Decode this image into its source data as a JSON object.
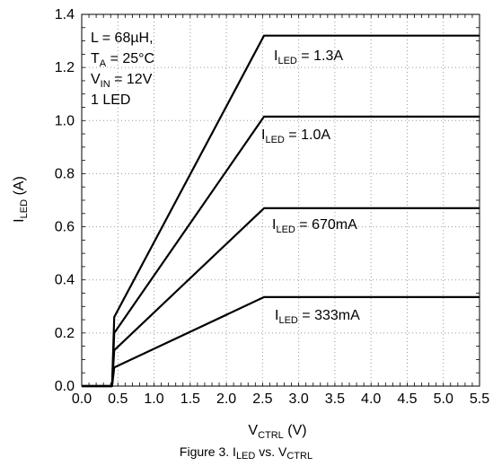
{
  "chart_data": {
    "type": "line",
    "title": "",
    "xlabel": {
      "main": "V",
      "sub": "CTRL",
      "unit": " (V)"
    },
    "ylabel": {
      "main": "I",
      "sub": "LED",
      "unit": " (A)"
    },
    "xlim": [
      0,
      5.5
    ],
    "ylim": [
      0,
      1.4
    ],
    "x_ticks": [
      "0.0",
      "0.5",
      "1.0",
      "1.5",
      "2.0",
      "2.5",
      "3.0",
      "3.5",
      "4.0",
      "4.5",
      "5.0",
      "5.5"
    ],
    "y_ticks": [
      "0.0",
      "0.2",
      "0.4",
      "0.6",
      "0.8",
      "1.0",
      "1.2",
      "1.4"
    ],
    "grid": "dotted",
    "series": [
      {
        "name": "ILED = 1.3A",
        "x": [
          0.0,
          0.42,
          0.45,
          2.52,
          5.5
        ],
        "y": [
          0.0,
          0.0,
          0.26,
          1.32,
          1.32
        ]
      },
      {
        "name": "ILED = 1.0A",
        "x": [
          0.0,
          0.42,
          0.45,
          2.52,
          5.5
        ],
        "y": [
          0.0,
          0.0,
          0.2,
          1.015,
          1.015
        ]
      },
      {
        "name": "ILED = 670mA",
        "x": [
          0.0,
          0.42,
          0.45,
          2.52,
          5.5
        ],
        "y": [
          0.0,
          0.0,
          0.135,
          0.67,
          0.67
        ]
      },
      {
        "name": "ILED = 333mA",
        "x": [
          0.0,
          0.42,
          0.45,
          2.52,
          5.5
        ],
        "y": [
          0.0,
          0.0,
          0.07,
          0.335,
          0.335
        ]
      }
    ],
    "curve_labels": [
      {
        "pre": "I",
        "sub": "LED",
        "post": " = 1.3A"
      },
      {
        "pre": "I",
        "sub": "LED",
        "post": " = 1.0A"
      },
      {
        "pre": "I",
        "sub": "LED",
        "post": " = 670mA"
      },
      {
        "pre": "I",
        "sub": "LED",
        "post": " = 333mA"
      }
    ],
    "conditions": [
      {
        "pre": "L = 68µH,",
        "sub": "",
        "post": ""
      },
      {
        "pre": "T",
        "sub": "A",
        "post": " = 25°C"
      },
      {
        "pre": "V",
        "sub": "IN",
        "post": " = 12V"
      },
      {
        "pre": "1 LED",
        "sub": "",
        "post": ""
      }
    ],
    "caption": {
      "a": "Figure 3. I",
      "b": "LED",
      "c": " vs. V",
      "d": "CTRL"
    }
  }
}
